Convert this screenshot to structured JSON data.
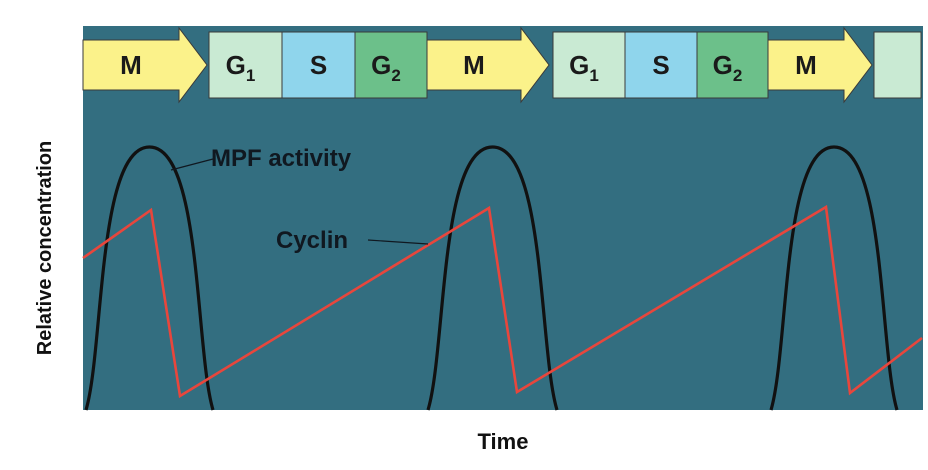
{
  "phases": [
    {
      "label": "M",
      "sub": "",
      "color": "#fbf28a",
      "shape": "arrow"
    },
    {
      "label": "G",
      "sub": "1",
      "color": "#c9ead3",
      "shape": "box"
    },
    {
      "label": "S",
      "sub": "",
      "color": "#8fd5ec",
      "shape": "box"
    },
    {
      "label": "G",
      "sub": "2",
      "color": "#6cc08a",
      "shape": "box"
    },
    {
      "label": "M",
      "sub": "",
      "color": "#fbf28a",
      "shape": "arrow"
    },
    {
      "label": "G",
      "sub": "1",
      "color": "#c9ead3",
      "shape": "box"
    },
    {
      "label": "S",
      "sub": "",
      "color": "#8fd5ec",
      "shape": "box"
    },
    {
      "label": "G",
      "sub": "2",
      "color": "#6cc08a",
      "shape": "box"
    },
    {
      "label": "M",
      "sub": "",
      "color": "#fbf28a",
      "shape": "arrow"
    },
    {
      "label": "",
      "sub": "",
      "color": "#c9ead3",
      "shape": "box"
    }
  ],
  "curves": {
    "mpf_label": "MPF activity",
    "cyclin_label": "Cyclin",
    "mpf_color": "#111111",
    "cyclin_color": "#e8463c"
  },
  "axes": {
    "x_label": "Time",
    "y_label": "Relative concentration"
  },
  "colors": {
    "panel": "#336e80",
    "page": "#ffffff"
  }
}
